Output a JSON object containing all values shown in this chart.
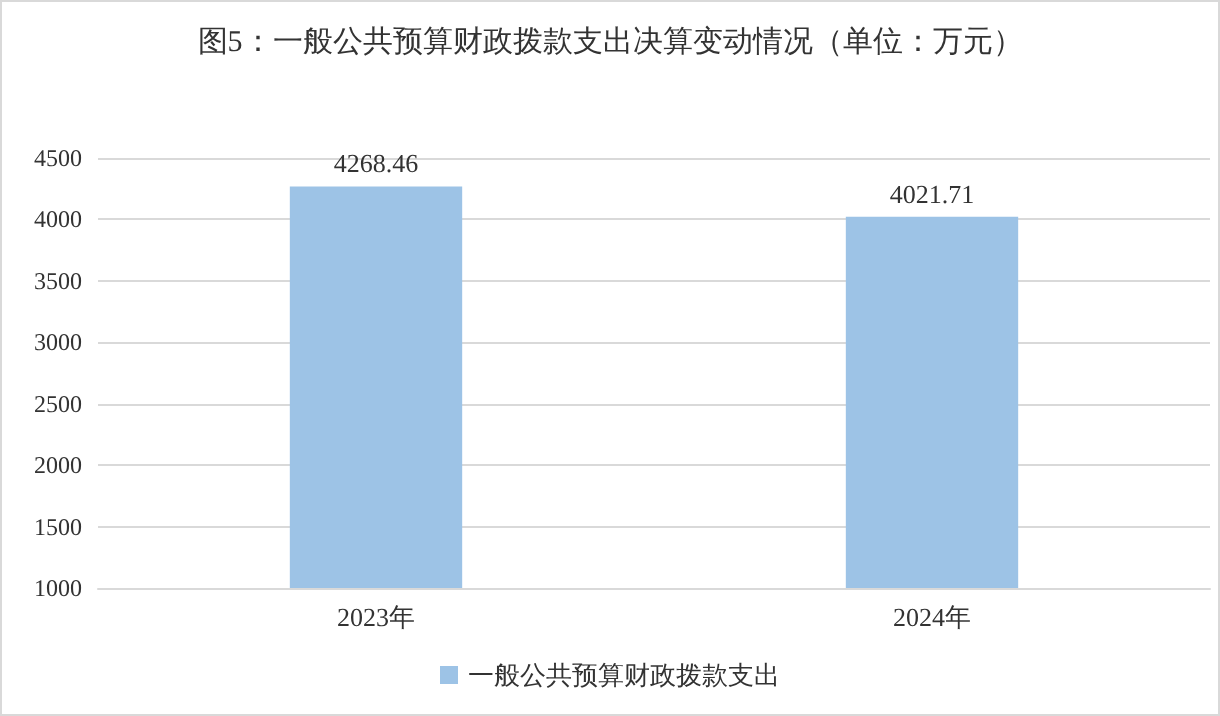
{
  "chart_data": {
    "type": "bar",
    "title": "图5：一般公共预算财政拨款支出决算变动情况（单位：万元）",
    "categories": [
      "2023年",
      "2024年"
    ],
    "series": [
      {
        "name": "一般公共预算财政拨款支出",
        "color": "#9dc3e6",
        "values": [
          4268.46,
          4021.71
        ]
      }
    ],
    "ylim": [
      1000,
      4500
    ],
    "yticks": [
      1000,
      1500,
      2000,
      2500,
      3000,
      3500,
      4000,
      4500
    ],
    "grid": "y",
    "legend": "bottom",
    "data_labels": true
  }
}
